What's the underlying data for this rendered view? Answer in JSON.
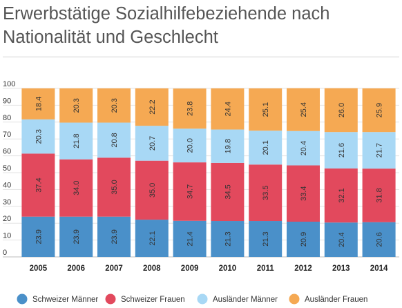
{
  "title": "Erwerbstätige Sozialhilfebeziehende nach Nationalität und Geschlecht",
  "chart_data": {
    "type": "bar",
    "stacked": true,
    "title": "Erwerbstätige Sozialhilfebeziehende nach Nationalität und Geschlecht",
    "xlabel": "",
    "ylabel": "",
    "ylim": [
      0,
      100
    ],
    "yticks": [
      0,
      10,
      20,
      30,
      40,
      50,
      60,
      70,
      80,
      90,
      100
    ],
    "grid": true,
    "legend_position": "bottom",
    "categories": [
      "2005",
      "2006",
      "2007",
      "2008",
      "2009",
      "2010",
      "2011",
      "2012",
      "2013",
      "2014"
    ],
    "series": [
      {
        "name": "Schweizer Männer",
        "color": "#4a90c9",
        "values": [
          23.9,
          23.9,
          23.9,
          22.1,
          21.4,
          21.3,
          21.3,
          20.9,
          20.4,
          20.6
        ],
        "labels": [
          "23.9",
          "23.9",
          "23.9",
          "22.1",
          "21.4",
          "21.3",
          "21.3",
          "20.9",
          "20.4",
          "20.6"
        ]
      },
      {
        "name": "Schweizer Frauen",
        "color": "#e2495d",
        "values": [
          37.4,
          34.0,
          35.0,
          35.0,
          34.7,
          34.5,
          33.5,
          33.4,
          32.1,
          31.8
        ],
        "labels": [
          "37.4",
          "34.0",
          "35.0",
          "35.0",
          "34.7",
          "34.5",
          "33.5",
          "33.4",
          "32.1",
          "31.8"
        ]
      },
      {
        "name": "Ausländer Männer",
        "color": "#a8d8f5",
        "values": [
          20.3,
          21.8,
          20.8,
          20.7,
          20.0,
          19.8,
          20.1,
          20.4,
          21.6,
          21.7
        ],
        "labels": [
          "20.3",
          "21.8",
          "20.8",
          "20.7",
          "20.0",
          "19.8",
          "20.1",
          "20.4",
          "21.6",
          "21.7"
        ]
      },
      {
        "name": "Ausländer Frauen",
        "color": "#f5a953",
        "values": [
          18.4,
          20.3,
          20.3,
          22.2,
          23.8,
          24.4,
          25.1,
          25.4,
          26.0,
          25.9
        ],
        "labels": [
          "18.4",
          "20.3",
          "20.3",
          "22.2",
          "23.8",
          "24.4",
          "25.1",
          "25.4",
          "26.0",
          "25.9"
        ]
      }
    ]
  }
}
